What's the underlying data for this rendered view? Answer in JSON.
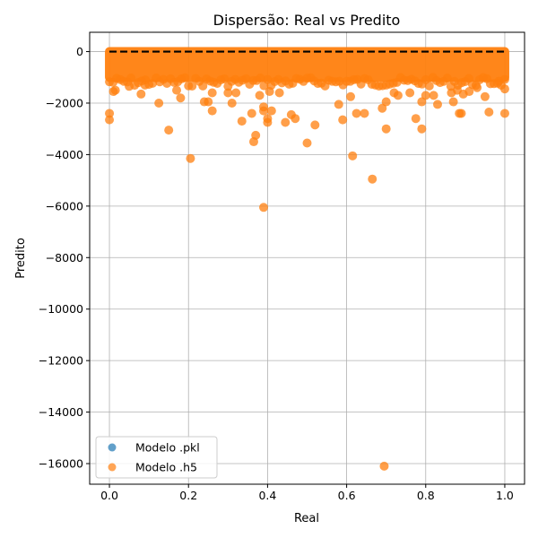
{
  "chart_data": {
    "type": "scatter",
    "title": "Dispersão: Real vs Predito",
    "xlabel": "Real",
    "ylabel": "Predito",
    "xlim": [
      -0.05,
      1.05
    ],
    "ylim": [
      -16800,
      750
    ],
    "xticks": [
      0.0,
      0.2,
      0.4,
      0.6,
      0.8,
      1.0
    ],
    "xtick_labels": [
      "0.0",
      "0.2",
      "0.4",
      "0.6",
      "0.8",
      "1.0"
    ],
    "yticks": [
      0,
      -2000,
      -4000,
      -6000,
      -8000,
      -10000,
      -12000,
      -14000,
      -16000
    ],
    "ytick_labels": [
      "0",
      "−2000",
      "−4000",
      "−6000",
      "−8000",
      "−10000",
      "−12000",
      "−14000",
      "−16000"
    ],
    "grid": true,
    "legend_position": "lower-left",
    "reference_line": {
      "x": [
        0,
        1
      ],
      "y": [
        0,
        0
      ],
      "color": "#000000",
      "style": "dashed"
    },
    "series": [
      {
        "name": "Modelo .pkl",
        "color": "#1f77b4",
        "points": []
      },
      {
        "name": "Modelo .h5",
        "color": "#ff7f0e",
        "dense_band": {
          "x": [
            0.0,
            1.0
          ],
          "y": [
            -1000,
            0
          ]
        },
        "points": [
          [
            0.0,
            -2400
          ],
          [
            0.0,
            -2650
          ],
          [
            0.01,
            -1550
          ],
          [
            0.015,
            -1500
          ],
          [
            0.05,
            -1350
          ],
          [
            0.08,
            -1650
          ],
          [
            0.09,
            -1300
          ],
          [
            0.125,
            -2000
          ],
          [
            0.15,
            -3050
          ],
          [
            0.17,
            -1500
          ],
          [
            0.18,
            -1800
          ],
          [
            0.205,
            -4150
          ],
          [
            0.24,
            -1950
          ],
          [
            0.25,
            -1950
          ],
          [
            0.26,
            -2300
          ],
          [
            0.26,
            -1600
          ],
          [
            0.3,
            -1600
          ],
          [
            0.31,
            -2000
          ],
          [
            0.32,
            -1600
          ],
          [
            0.335,
            -2700
          ],
          [
            0.36,
            -2400
          ],
          [
            0.365,
            -3500
          ],
          [
            0.37,
            -3250
          ],
          [
            0.38,
            -1700
          ],
          [
            0.39,
            -6050
          ],
          [
            0.39,
            -2300
          ],
          [
            0.39,
            -2150
          ],
          [
            0.4,
            -2600
          ],
          [
            0.4,
            -2750
          ],
          [
            0.405,
            -1550
          ],
          [
            0.41,
            -2300
          ],
          [
            0.43,
            -1600
          ],
          [
            0.445,
            -2750
          ],
          [
            0.46,
            -2450
          ],
          [
            0.47,
            -2600
          ],
          [
            0.5,
            -3550
          ],
          [
            0.52,
            -2850
          ],
          [
            0.58,
            -2050
          ],
          [
            0.59,
            -2650
          ],
          [
            0.61,
            -1750
          ],
          [
            0.615,
            -4050
          ],
          [
            0.625,
            -2400
          ],
          [
            0.645,
            -2400
          ],
          [
            0.665,
            -4950
          ],
          [
            0.69,
            -2200
          ],
          [
            0.695,
            -16100
          ],
          [
            0.7,
            -3000
          ],
          [
            0.7,
            -1950
          ],
          [
            0.72,
            -1600
          ],
          [
            0.73,
            -1700
          ],
          [
            0.76,
            -1600
          ],
          [
            0.775,
            -2600
          ],
          [
            0.79,
            -1950
          ],
          [
            0.79,
            -3000
          ],
          [
            0.8,
            -1700
          ],
          [
            0.82,
            -1700
          ],
          [
            0.83,
            -2050
          ],
          [
            0.865,
            -1600
          ],
          [
            0.87,
            -1950
          ],
          [
            0.88,
            -1500
          ],
          [
            0.885,
            -2400
          ],
          [
            0.89,
            -2400
          ],
          [
            0.895,
            -1650
          ],
          [
            0.91,
            -1550
          ],
          [
            0.93,
            -1400
          ],
          [
            0.95,
            -1750
          ],
          [
            0.96,
            -2350
          ],
          [
            0.985,
            -1150
          ],
          [
            1.0,
            -1450
          ],
          [
            1.0,
            -2400
          ]
        ]
      }
    ]
  }
}
